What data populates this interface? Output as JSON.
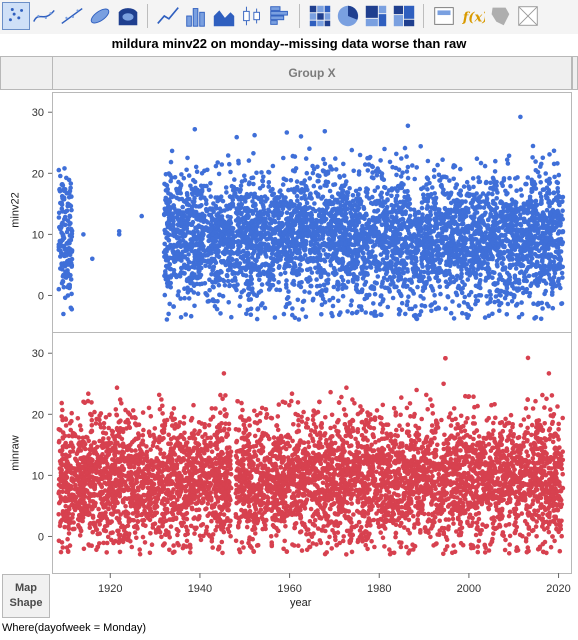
{
  "toolbar": {
    "buttons": [
      {
        "name": "points-icon",
        "selected": true
      },
      {
        "name": "smoother-icon",
        "selected": false
      },
      {
        "name": "line-of-fit-icon",
        "selected": false
      },
      {
        "name": "ellipse-icon",
        "selected": false
      },
      {
        "name": "contour-icon",
        "selected": false
      },
      {
        "name": "line-icon",
        "selected": false
      },
      {
        "name": "bar-icon",
        "selected": false
      },
      {
        "name": "area-icon",
        "selected": false
      },
      {
        "name": "box-plot-icon",
        "selected": false
      },
      {
        "name": "histogram-icon",
        "selected": false
      },
      {
        "name": "heatmap-icon",
        "selected": false
      },
      {
        "name": "pie-icon",
        "selected": false
      },
      {
        "name": "treemap-icon",
        "selected": false
      },
      {
        "name": "mosaic-icon",
        "selected": false
      },
      {
        "name": "caption-box-icon",
        "selected": false
      },
      {
        "name": "formula-icon",
        "selected": false
      },
      {
        "name": "map-shapes-icon",
        "selected": false
      },
      {
        "name": "grid-icon",
        "selected": false
      }
    ]
  },
  "title": "mildura minv22 on monday--missing data worse than raw",
  "group_x_label": "Group X",
  "map_shape_label_line1": "Map",
  "map_shape_label_line2": "Shape",
  "where_clause": "Where(dayofweek = Monday)",
  "colors": {
    "series1": "#3f6fd8",
    "series2": "#d7414f"
  },
  "chart_data": [
    {
      "type": "scatter",
      "ylabel": "minv22",
      "xlabel": "year",
      "xlim": [
        1907,
        2023
      ],
      "ylim": [
        -5,
        32
      ],
      "yticks": [
        0,
        10,
        20,
        30
      ],
      "xticks": [
        1920,
        1940,
        1960,
        1980,
        2000,
        2020
      ],
      "series": [
        {
          "name": "minv22",
          "color": "#3f6fd8",
          "coverage": [
            [
              1908.5,
              1911.5
            ],
            [
              1932,
              2021
            ]
          ],
          "sparse_points": [
            [
              1914,
              10
            ],
            [
              1916,
              6
            ],
            [
              1922,
              10
            ],
            [
              1922,
              10.5
            ],
            [
              1927,
              13
            ]
          ],
          "y_range": [
            -4,
            31.5
          ]
        }
      ]
    },
    {
      "type": "scatter",
      "ylabel": "minraw",
      "xlabel": "year",
      "xlim": [
        1907,
        2023
      ],
      "ylim": [
        -5,
        32
      ],
      "yticks": [
        0,
        10,
        20,
        30
      ],
      "xticks": [
        1920,
        1940,
        1960,
        1980,
        2000,
        2020
      ],
      "series": [
        {
          "name": "minraw",
          "color": "#d7414f",
          "coverage": [
            [
              1908.5,
              1947
            ],
            [
              1948,
              2021
            ]
          ],
          "y_range": [
            -3,
            31.5
          ]
        }
      ]
    }
  ]
}
